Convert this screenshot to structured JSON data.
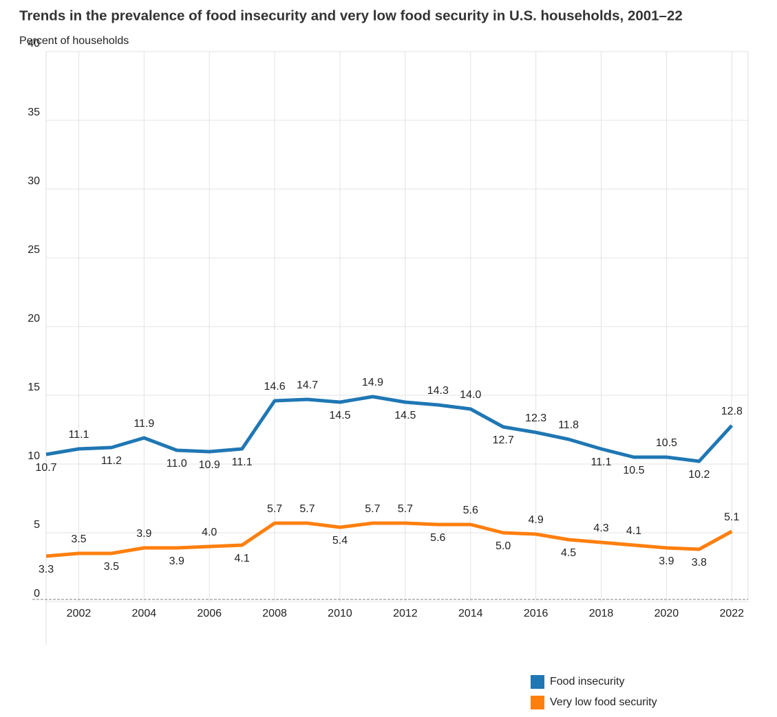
{
  "chart_data": {
    "type": "line",
    "title": "Trends in the prevalence of food insecurity and very low food security in U.S. households, 2001–22",
    "y_label": "Percent of households",
    "x": [
      2001,
      2002,
      2003,
      2004,
      2005,
      2006,
      2007,
      2008,
      2009,
      2010,
      2011,
      2012,
      2013,
      2014,
      2015,
      2016,
      2017,
      2018,
      2019,
      2020,
      2021,
      2022
    ],
    "series": [
      {
        "name": "Food insecurity",
        "color": "#1f77b4",
        "values": [
          10.7,
          11.1,
          11.2,
          11.9,
          11.0,
          10.9,
          11.1,
          14.6,
          14.7,
          14.5,
          14.9,
          14.5,
          14.3,
          14.0,
          12.7,
          12.3,
          11.8,
          11.1,
          10.5,
          10.5,
          10.2,
          12.8
        ],
        "value_labels": [
          "10.7",
          "11.1",
          "11.2",
          "11.9",
          "11.0",
          "10.9",
          "11.1",
          "14.6",
          "14.7",
          "14.5",
          "14.9",
          "14.5",
          "14.3",
          "14.0",
          "12.7",
          "12.3",
          "11.8",
          "11.1",
          "10.5",
          "10.5",
          "10.2",
          "12.8"
        ]
      },
      {
        "name": "Very low food security",
        "color": "#ff7f0e",
        "values": [
          3.3,
          3.5,
          3.5,
          3.9,
          3.9,
          4.0,
          4.1,
          5.7,
          5.7,
          5.4,
          5.7,
          5.7,
          5.6,
          5.6,
          5.0,
          4.9,
          4.5,
          4.3,
          4.1,
          3.9,
          3.8,
          5.1
        ],
        "value_labels": [
          "3.3",
          "3.5",
          "3.5",
          "3.9",
          "3.9",
          "4.0",
          "4.1",
          "5.7",
          "5.7",
          "5.4",
          "5.7",
          "5.7",
          "5.6",
          "5.6",
          "5.0",
          "4.9",
          "4.5",
          "4.3",
          "4.1",
          "3.9",
          "3.8",
          "5.1"
        ]
      }
    ],
    "xlim": [
      2001,
      2022.5
    ],
    "xticks": [
      2002,
      2004,
      2006,
      2008,
      2010,
      2012,
      2014,
      2016,
      2018,
      2020,
      2022
    ],
    "ylim": [
      0,
      40
    ],
    "yticks": [
      0,
      5,
      10,
      15,
      20,
      25,
      30,
      35,
      40
    ],
    "grid": true,
    "legend": "bottom-right"
  }
}
